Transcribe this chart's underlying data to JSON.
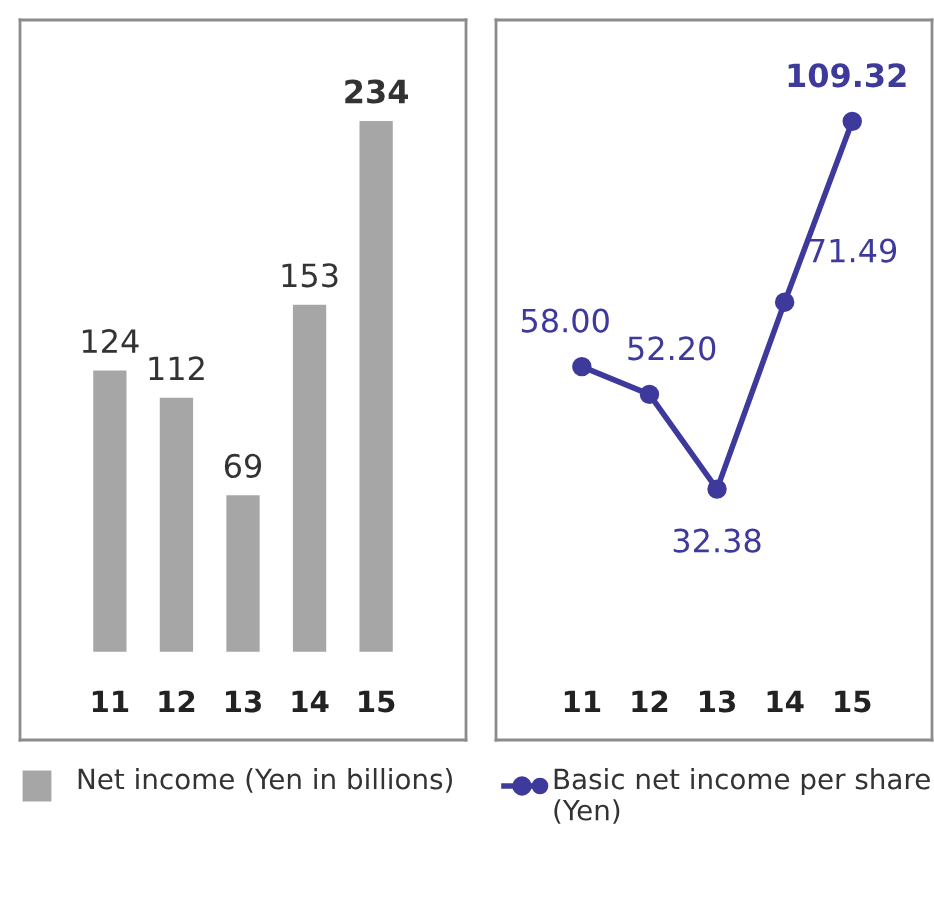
{
  "chart_data": [
    {
      "type": "bar",
      "categories": [
        "11",
        "12",
        "13",
        "14",
        "15"
      ],
      "data_labels": true,
      "legend": "bottom",
      "series": [
        {
          "name": "Net income (Yen in billions)",
          "color": "#a6a6a6",
          "values": [
            124,
            112,
            69,
            153,
            234
          ]
        }
      ]
    },
    {
      "type": "line",
      "categories": [
        "11",
        "12",
        "13",
        "14",
        "15"
      ],
      "marker": "circle",
      "line_style": "solid",
      "legend": "bottom",
      "series": [
        {
          "name": "Basic net income per share (Yen)",
          "color": "#3d3a9c",
          "values": [
            58.0,
            52.2,
            32.38,
            71.49,
            109.32
          ],
          "value_labels": [
            "58.00",
            "52.20",
            "32.38",
            "71.49",
            "109.32"
          ]
        }
      ]
    }
  ]
}
